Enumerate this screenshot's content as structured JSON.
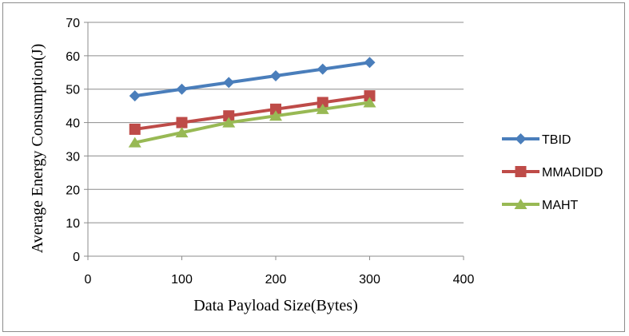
{
  "chart_data": {
    "type": "line",
    "title": "",
    "xlabel": "Data Payload Size(Bytes)",
    "ylabel": "Average Energy Consumption(J)",
    "xlim": [
      0,
      400
    ],
    "ylim": [
      0,
      70
    ],
    "x_ticks": [
      0,
      100,
      200,
      300,
      400
    ],
    "y_ticks": [
      0,
      10,
      20,
      30,
      40,
      50,
      60,
      70
    ],
    "grid": "horizontal",
    "legend_position": "right",
    "x": [
      50,
      100,
      150,
      200,
      250,
      300
    ],
    "series": [
      {
        "name": "TBID",
        "values": [
          48,
          50,
          52,
          54,
          56,
          58
        ],
        "color": "#4a7ebb",
        "marker": "diamond"
      },
      {
        "name": "MMADIDD",
        "values": [
          38,
          40,
          42,
          44,
          46,
          48
        ],
        "color": "#be4b48",
        "marker": "square"
      },
      {
        "name": "MAHT",
        "values": [
          34,
          37,
          40,
          42,
          44,
          46
        ],
        "color": "#98b954",
        "marker": "triangle"
      }
    ]
  }
}
